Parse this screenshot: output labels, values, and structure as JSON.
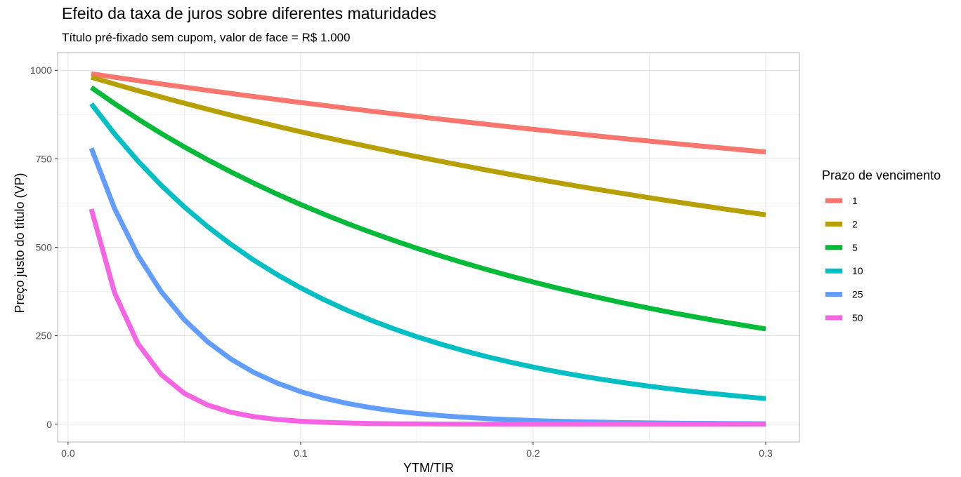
{
  "title": "Efeito da taxa de juros sobre diferentes maturidades",
  "subtitle": "Título pré-fixado sem cupom, valor de face = R$ 1.000",
  "colors": {
    "series": [
      "#F8766D",
      "#B79F00",
      "#00BA38",
      "#00BFC4",
      "#619CFF",
      "#F564E3"
    ],
    "grid_major": "#e3e3e3",
    "grid_minor": "#f1f1f1",
    "panel_border": "#b3b3b3"
  },
  "chart_data": {
    "type": "line",
    "title": "Efeito da taxa de juros sobre diferentes maturidades",
    "subtitle": "Título pré-fixado sem cupom, valor de face = R$ 1.000",
    "xlabel": "YTM/TIR",
    "ylabel": "Preço justo do título (VP)",
    "xlim": [
      -0.0045,
      0.3145
    ],
    "ylim": [
      -50,
      1050
    ],
    "x_ticks": [
      0.0,
      0.1,
      0.2,
      0.3
    ],
    "x_tick_labels": [
      "0.0",
      "0.1",
      "0.2",
      "0.3"
    ],
    "y_ticks": [
      0,
      250,
      500,
      750,
      1000
    ],
    "y_tick_labels": [
      "0",
      "250",
      "500",
      "750",
      "1000"
    ],
    "grid": true,
    "legend_title": "Prazo de vencimento",
    "legend_position": "right",
    "x": [
      0.01,
      0.02,
      0.03,
      0.04,
      0.05,
      0.06,
      0.07,
      0.08,
      0.09,
      0.1,
      0.11,
      0.12,
      0.13,
      0.14,
      0.15,
      0.16,
      0.17,
      0.18,
      0.19,
      0.2,
      0.21,
      0.22,
      0.23,
      0.24,
      0.25,
      0.26,
      0.27,
      0.28,
      0.29,
      0.3
    ],
    "series": [
      {
        "name": "1",
        "values": [
          990.1,
          980.4,
          970.9,
          961.5,
          952.4,
          943.4,
          934.6,
          925.9,
          917.4,
          909.1,
          900.9,
          892.9,
          885.0,
          877.2,
          869.6,
          862.1,
          854.7,
          847.5,
          840.3,
          833.3,
          826.4,
          819.7,
          813.0,
          806.5,
          800.0,
          793.7,
          787.4,
          781.3,
          775.2,
          769.2
        ]
      },
      {
        "name": "2",
        "values": [
          980.3,
          961.2,
          942.6,
          924.6,
          907.0,
          890.0,
          873.4,
          857.3,
          841.7,
          826.4,
          811.6,
          797.2,
          783.2,
          769.5,
          756.1,
          743.2,
          730.5,
          718.2,
          706.2,
          694.4,
          683.0,
          671.9,
          661.0,
          650.4,
          640.0,
          629.9,
          620.0,
          610.4,
          600.9,
          591.7
        ]
      },
      {
        "name": "5",
        "values": [
          951.5,
          905.7,
          862.6,
          821.9,
          783.5,
          747.3,
          713.0,
          680.6,
          649.9,
          620.9,
          593.5,
          567.4,
          542.8,
          519.4,
          497.2,
          476.1,
          456.1,
          437.1,
          419.0,
          401.9,
          385.5,
          370.0,
          355.2,
          341.1,
          327.7,
          314.9,
          302.7,
          291.1,
          280.0,
          269.3
        ]
      },
      {
        "name": "10",
        "values": [
          905.3,
          820.3,
          744.1,
          675.6,
          613.9,
          558.4,
          508.3,
          463.2,
          422.4,
          385.5,
          352.2,
          322.0,
          294.6,
          269.7,
          247.2,
          226.7,
          208.0,
          191.1,
          175.6,
          161.5,
          148.6,
          136.9,
          126.2,
          116.4,
          107.4,
          99.2,
          91.6,
          84.7,
          78.4,
          72.5
        ]
      },
      {
        "name": "25",
        "values": [
          779.8,
          609.5,
          477.6,
          375.1,
          295.3,
          233.0,
          184.2,
          146.0,
          116.0,
          92.3,
          73.6,
          58.8,
          47.1,
          37.8,
          30.4,
          24.5,
          19.8,
          16.0,
          12.9,
          10.5,
          8.5,
          6.9,
          5.6,
          4.6,
          3.8,
          3.1,
          2.5,
          2.1,
          1.7,
          1.4
        ]
      },
      {
        "name": "50",
        "values": [
          608.0,
          371.5,
          228.1,
          140.7,
          87.2,
          54.3,
          33.9,
          21.3,
          13.4,
          8.5,
          5.4,
          3.5,
          2.2,
          1.4,
          0.9,
          0.6,
          0.4,
          0.3,
          0.2,
          0.1,
          0.1,
          0.0,
          0.0,
          0.0,
          0.0,
          0.0,
          0.0,
          0.0,
          0.0,
          0.0
        ]
      }
    ]
  }
}
